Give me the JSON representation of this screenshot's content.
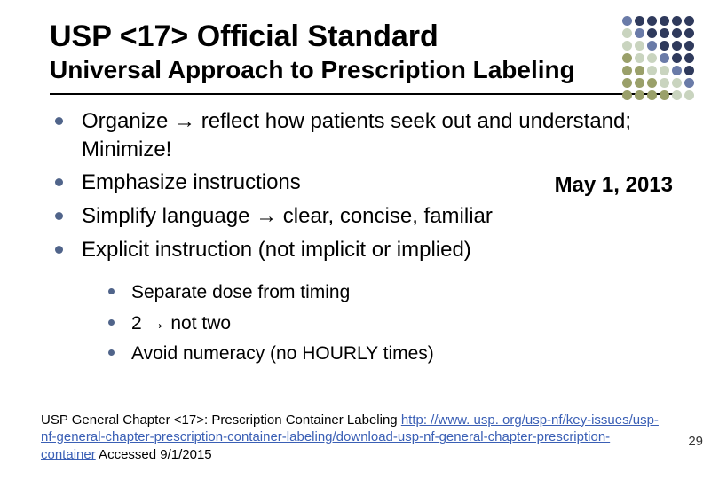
{
  "title": "USP <17> Official Standard",
  "subtitle": "Universal Approach to Prescription Labeling",
  "date": "May 1, 2013",
  "main_bullets": [
    "Organize → reflect how patients seek out and understand; Minimize!",
    "Emphasize instructions",
    "Simplify language → clear, concise, familiar",
    "Explicit instruction (not implicit or implied)"
  ],
  "sub_bullets": [
    "Separate dose from timing",
    "2 → not two",
    "Avoid numeracy (no HOURLY times)"
  ],
  "citation_prefix": "USP General Chapter <17>: Prescription Container Labeling  ",
  "citation_link": "http: //www. usp. org/usp-nf/key-issues/usp-nf-general-chapter-prescription-container-labeling/download-usp-nf-general-chapter-prescription-container",
  "citation_suffix": "    Accessed 9/1/2015",
  "page_number": "29",
  "dot_colors": {
    "dark": "#2f3a5c",
    "mid": "#6a7ba8",
    "olive": "#9aa06a",
    "light": "#c9d4bf"
  },
  "dot_rows": [
    [
      "mid",
      "dark",
      "dark",
      "dark",
      "dark",
      "dark"
    ],
    [
      "light",
      "mid",
      "dark",
      "dark",
      "dark",
      "dark"
    ],
    [
      "light",
      "light",
      "mid",
      "dark",
      "dark",
      "dark"
    ],
    [
      "olive",
      "light",
      "light",
      "mid",
      "dark",
      "dark"
    ],
    [
      "olive",
      "olive",
      "light",
      "light",
      "mid",
      "dark"
    ],
    [
      "olive",
      "olive",
      "olive",
      "light",
      "light",
      "mid"
    ],
    [
      "olive",
      "olive",
      "olive",
      "olive",
      "light",
      "light"
    ]
  ]
}
